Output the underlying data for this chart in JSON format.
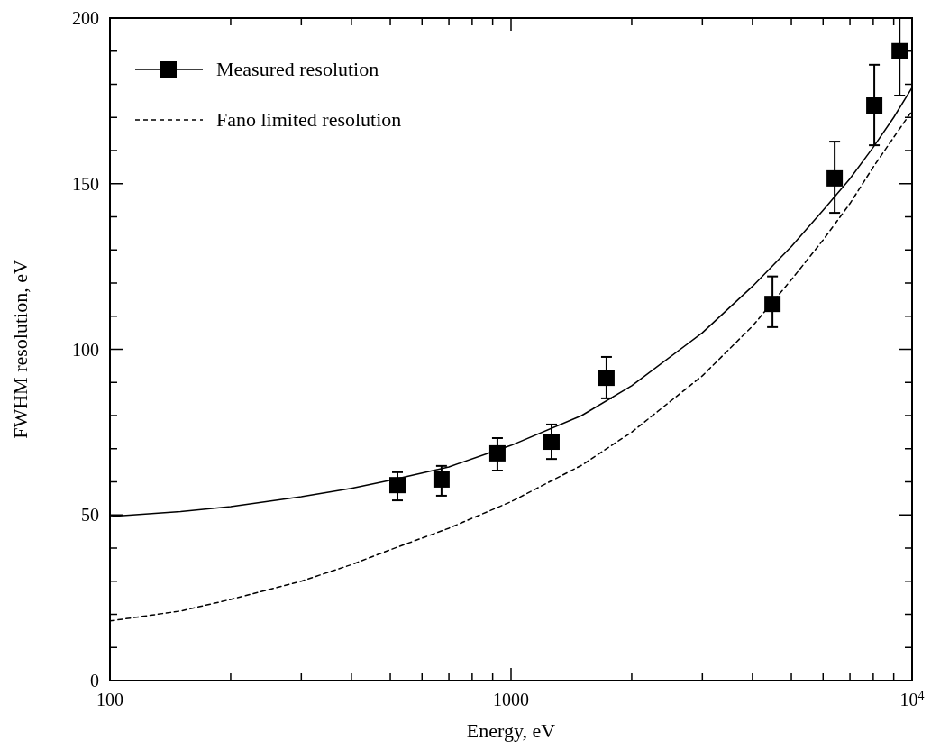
{
  "chart_data": {
    "type": "line",
    "xlabel": "Energy, eV",
    "ylabel": "FWHM resolution, eV",
    "log": "x",
    "xlim": [
      100,
      10000
    ],
    "ylim": [
      0,
      200
    ],
    "xticks": [
      100,
      {
        "value": 200,
        "label": null
      },
      {
        "value": 300,
        "label": null
      },
      {
        "value": 400,
        "label": null
      },
      {
        "value": 500,
        "label": null
      },
      {
        "value": 600,
        "label": null
      },
      {
        "value": 700,
        "label": null
      },
      {
        "value": 800,
        "label": null
      },
      {
        "value": 900,
        "label": null
      },
      1000,
      {
        "value": 2000,
        "label": null
      },
      {
        "value": 3000,
        "label": null
      },
      {
        "value": 4000,
        "label": null
      },
      {
        "value": 5000,
        "label": null
      },
      {
        "value": 6000,
        "label": null
      },
      {
        "value": 7000,
        "label": null
      },
      {
        "value": 8000,
        "label": null
      },
      {
        "value": 9000,
        "label": null
      },
      {
        "value": 10000,
        "label": "10$^{4}$"
      }
    ],
    "yticks": [
      0,
      {
        "value": 10,
        "label": null
      },
      {
        "value": 20,
        "label": null
      },
      {
        "value": 30,
        "label": null
      },
      {
        "value": 40,
        "label": null
      },
      50,
      {
        "value": 60,
        "label": null
      },
      {
        "value": 70,
        "label": null
      },
      {
        "value": 80,
        "label": null
      },
      {
        "value": 90,
        "label": null
      },
      100,
      {
        "value": 110,
        "label": null
      },
      {
        "value": 120,
        "label": null
      },
      {
        "value": 130,
        "label": null
      },
      {
        "value": 140,
        "label": null
      },
      150,
      {
        "value": 160,
        "label": null
      },
      {
        "value": 170,
        "label": null
      },
      {
        "value": 180,
        "label": null
      },
      {
        "value": 190,
        "label": null
      },
      200
    ],
    "grid": false,
    "legend": "top left",
    "series": [
      {
        "name": "Measured resolution",
        "type": "scatter",
        "marker": "square",
        "color": "#000000",
        "x": [
          521,
          671,
          925,
          1262,
          1730,
          4487,
          6412,
          8050,
          9310
        ],
        "values": [
          59,
          60.7,
          68.6,
          72.1,
          91.4,
          113.7,
          151.6,
          173.6,
          190
        ],
        "errors": [
          [
            54.4,
            62.9
          ],
          [
            55.8,
            64.8
          ],
          [
            63.4,
            73.2
          ],
          [
            66.9,
            77.3
          ],
          [
            85.2,
            97.7
          ],
          [
            106.7,
            122
          ],
          [
            141.2,
            162.7
          ],
          [
            161.6,
            185.9
          ],
          [
            176.6,
            200
          ]
        ]
      },
      {
        "type": "line",
        "marker": "none",
        "line_style": "solid",
        "color": "#000000",
        "x": [
          100,
          150,
          200,
          300,
          400,
          500,
          700,
          1000,
          1500,
          2000,
          3000,
          4000,
          5000,
          6000,
          7000,
          8000,
          9000,
          10000
        ],
        "values": [
          49.5,
          51,
          52.5,
          55.5,
          58,
          60.5,
          64.5,
          71,
          80,
          89,
          105,
          119,
          131,
          142,
          151.5,
          161,
          170,
          179
        ]
      },
      {
        "name": "Fano limited resolution",
        "type": "line",
        "marker": "none",
        "line_style": "dashed",
        "color": "#000000",
        "x": [
          100,
          150,
          200,
          300,
          400,
          500,
          700,
          1000,
          1500,
          2000,
          3000,
          4000,
          5000,
          6000,
          7000,
          8000,
          9000,
          10000
        ],
        "values": [
          18,
          21,
          24.5,
          30,
          35,
          39.5,
          46,
          54,
          65,
          75,
          92,
          107,
          121,
          133,
          144,
          155,
          164,
          172
        ]
      }
    ]
  }
}
